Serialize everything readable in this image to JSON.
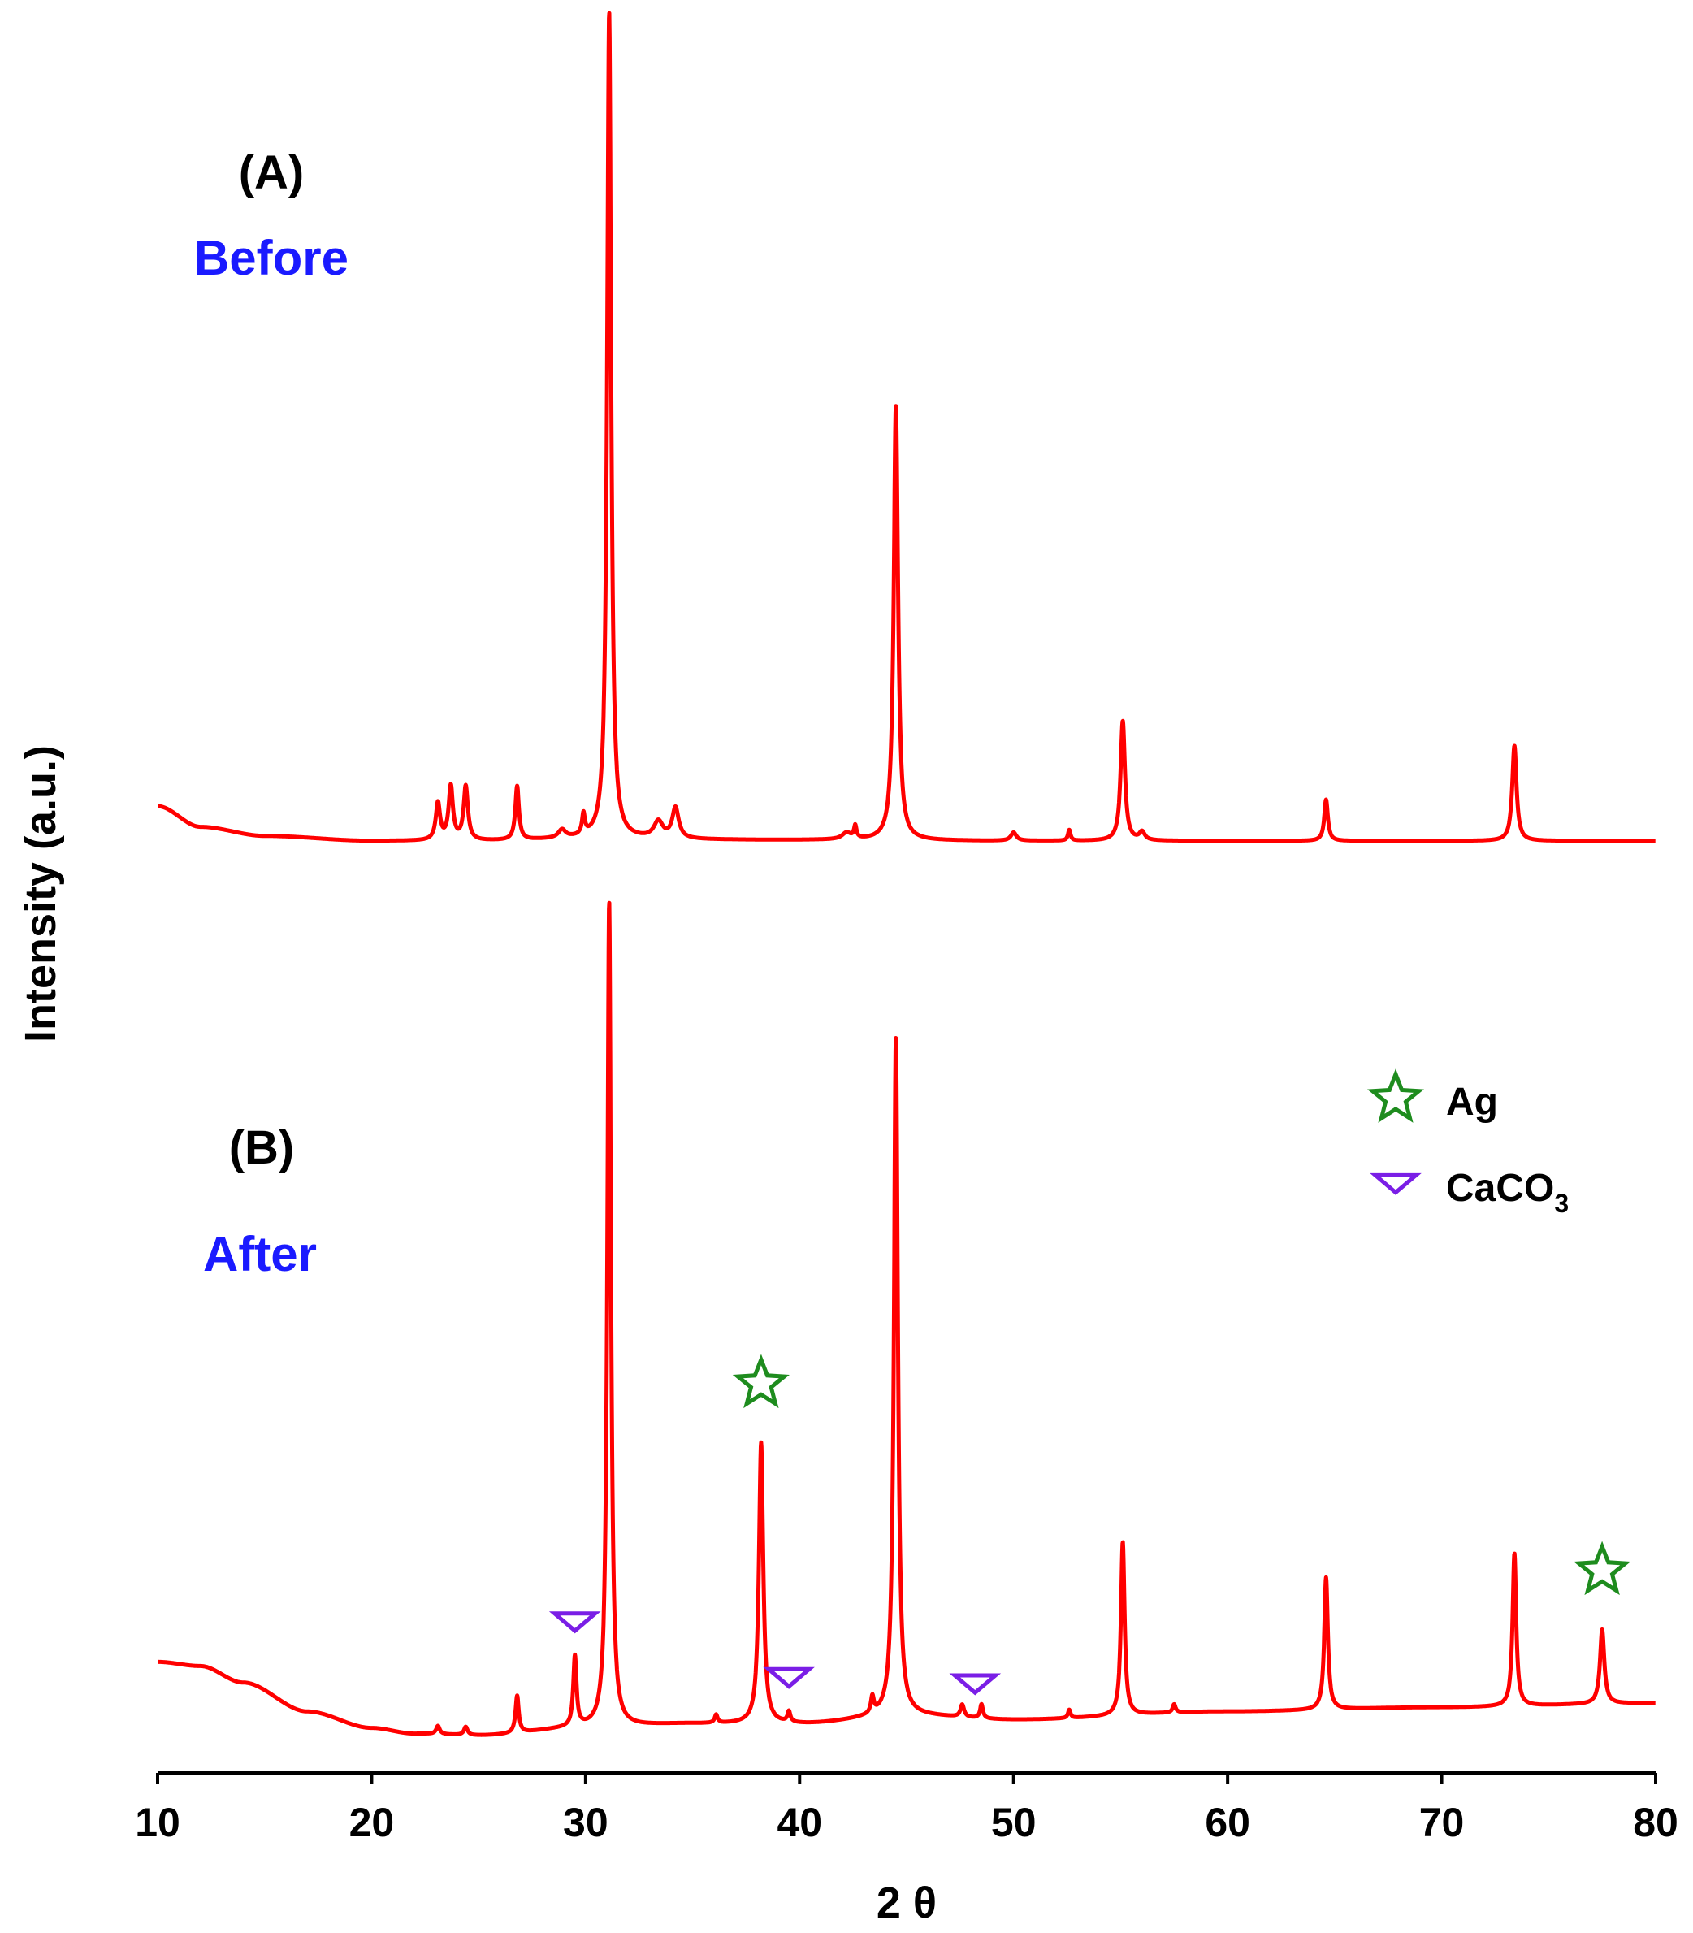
{
  "chart_data": {
    "type": "line",
    "xlabel": "2 θ",
    "ylabel": "Intensity (a.u.)",
    "xlim": [
      10,
      80
    ],
    "x_ticks": [
      "10",
      "20",
      "30",
      "40",
      "50",
      "60",
      "70",
      "80"
    ],
    "line_color": "#ff0000",
    "grid": false,
    "panels": [
      {
        "label": "(A)",
        "state": "Before",
        "state_color": "#1a1aff",
        "y_range": [
          0,
          100
        ],
        "baseline": [
          [
            10.0,
            4.5
          ],
          [
            12.0,
            2.0
          ],
          [
            15.0,
            0.9
          ],
          [
            20.0,
            0.3
          ],
          [
            25.0,
            0.3
          ],
          [
            30.0,
            0.5
          ],
          [
            40.0,
            0.4
          ],
          [
            50.0,
            0.3
          ],
          [
            60.0,
            0.3
          ],
          [
            70.0,
            0.3
          ],
          [
            80.0,
            0.3
          ]
        ],
        "peaks": [
          {
            "x": 23.1,
            "h": 4.5,
            "w": 0.12
          },
          {
            "x": 23.7,
            "h": 6.5,
            "w": 0.12
          },
          {
            "x": 24.4,
            "h": 6.5,
            "w": 0.12
          },
          {
            "x": 26.8,
            "h": 6.5,
            "w": 0.1
          },
          {
            "x": 28.9,
            "h": 1.0,
            "w": 0.2
          },
          {
            "x": 29.9,
            "h": 2.5,
            "w": 0.08
          },
          {
            "x": 31.1,
            "h": 100.0,
            "w": 0.11
          },
          {
            "x": 33.4,
            "h": 2.0,
            "w": 0.25
          },
          {
            "x": 34.2,
            "h": 3.7,
            "w": 0.18
          },
          {
            "x": 42.2,
            "h": 0.8,
            "w": 0.25
          },
          {
            "x": 42.6,
            "h": 1.5,
            "w": 0.07
          },
          {
            "x": 44.5,
            "h": 52.5,
            "w": 0.12
          },
          {
            "x": 50.0,
            "h": 1.0,
            "w": 0.15
          },
          {
            "x": 52.6,
            "h": 1.3,
            "w": 0.07
          },
          {
            "x": 55.1,
            "h": 14.5,
            "w": 0.12
          },
          {
            "x": 56.0,
            "h": 1.0,
            "w": 0.15
          },
          {
            "x": 64.6,
            "h": 5.0,
            "w": 0.1
          },
          {
            "x": 73.4,
            "h": 11.5,
            "w": 0.12
          }
        ]
      },
      {
        "label": "(B)",
        "state": "After",
        "state_color": "#1a1aff",
        "y_range": [
          0,
          100
        ],
        "baseline": [
          [
            10.0,
            9.5
          ],
          [
            12.0,
            9.0
          ],
          [
            14.0,
            7.0
          ],
          [
            17.0,
            3.5
          ],
          [
            20.0,
            1.5
          ],
          [
            22.0,
            0.8
          ],
          [
            25.0,
            0.6
          ],
          [
            30.0,
            1.5
          ],
          [
            35.0,
            2.0
          ],
          [
            40.0,
            2.0
          ],
          [
            45.0,
            3.0
          ],
          [
            50.0,
            2.5
          ],
          [
            60.0,
            3.5
          ],
          [
            70.0,
            4.0
          ],
          [
            80.0,
            4.5
          ]
        ],
        "peaks": [
          {
            "x": 23.1,
            "h": 1.0,
            "w": 0.1
          },
          {
            "x": 24.4,
            "h": 1.0,
            "w": 0.1
          },
          {
            "x": 26.8,
            "h": 4.5,
            "w": 0.09
          },
          {
            "x": 29.5,
            "h": 8.5,
            "w": 0.09
          },
          {
            "x": 31.1,
            "h": 100.0,
            "w": 0.1
          },
          {
            "x": 36.1,
            "h": 1.0,
            "w": 0.08
          },
          {
            "x": 38.2,
            "h": 34.0,
            "w": 0.12
          },
          {
            "x": 39.5,
            "h": 1.3,
            "w": 0.08
          },
          {
            "x": 43.4,
            "h": 2.0,
            "w": 0.08
          },
          {
            "x": 44.5,
            "h": 82.0,
            "w": 0.11
          },
          {
            "x": 47.6,
            "h": 1.5,
            "w": 0.1
          },
          {
            "x": 48.5,
            "h": 1.7,
            "w": 0.08
          },
          {
            "x": 52.6,
            "h": 1.0,
            "w": 0.07
          },
          {
            "x": 55.1,
            "h": 21.0,
            "w": 0.1
          },
          {
            "x": 57.5,
            "h": 1.0,
            "w": 0.08
          },
          {
            "x": 64.6,
            "h": 16.0,
            "w": 0.1
          },
          {
            "x": 73.4,
            "h": 18.5,
            "w": 0.1
          },
          {
            "x": 77.5,
            "h": 9.0,
            "w": 0.12
          }
        ],
        "markers": [
          {
            "phase": "Ag",
            "x": 38.2
          },
          {
            "phase": "Ag",
            "x": 77.5
          },
          {
            "phase": "CaCO3",
            "x": 29.5
          },
          {
            "phase": "CaCO3",
            "x": 39.5
          },
          {
            "phase": "CaCO3",
            "x": 48.2
          }
        ]
      }
    ],
    "legend": [
      {
        "id": "Ag",
        "label": "Ag",
        "label_main": "Ag",
        "label_sub": "",
        "symbol": "star",
        "color": "#1e8c1e"
      },
      {
        "id": "CaCO3",
        "label": "CaCO3",
        "label_main": "CaCO",
        "label_sub": "3",
        "symbol": "triangle-down",
        "color": "#7a1ee6"
      }
    ],
    "legend_position": "right, beside panel B"
  }
}
